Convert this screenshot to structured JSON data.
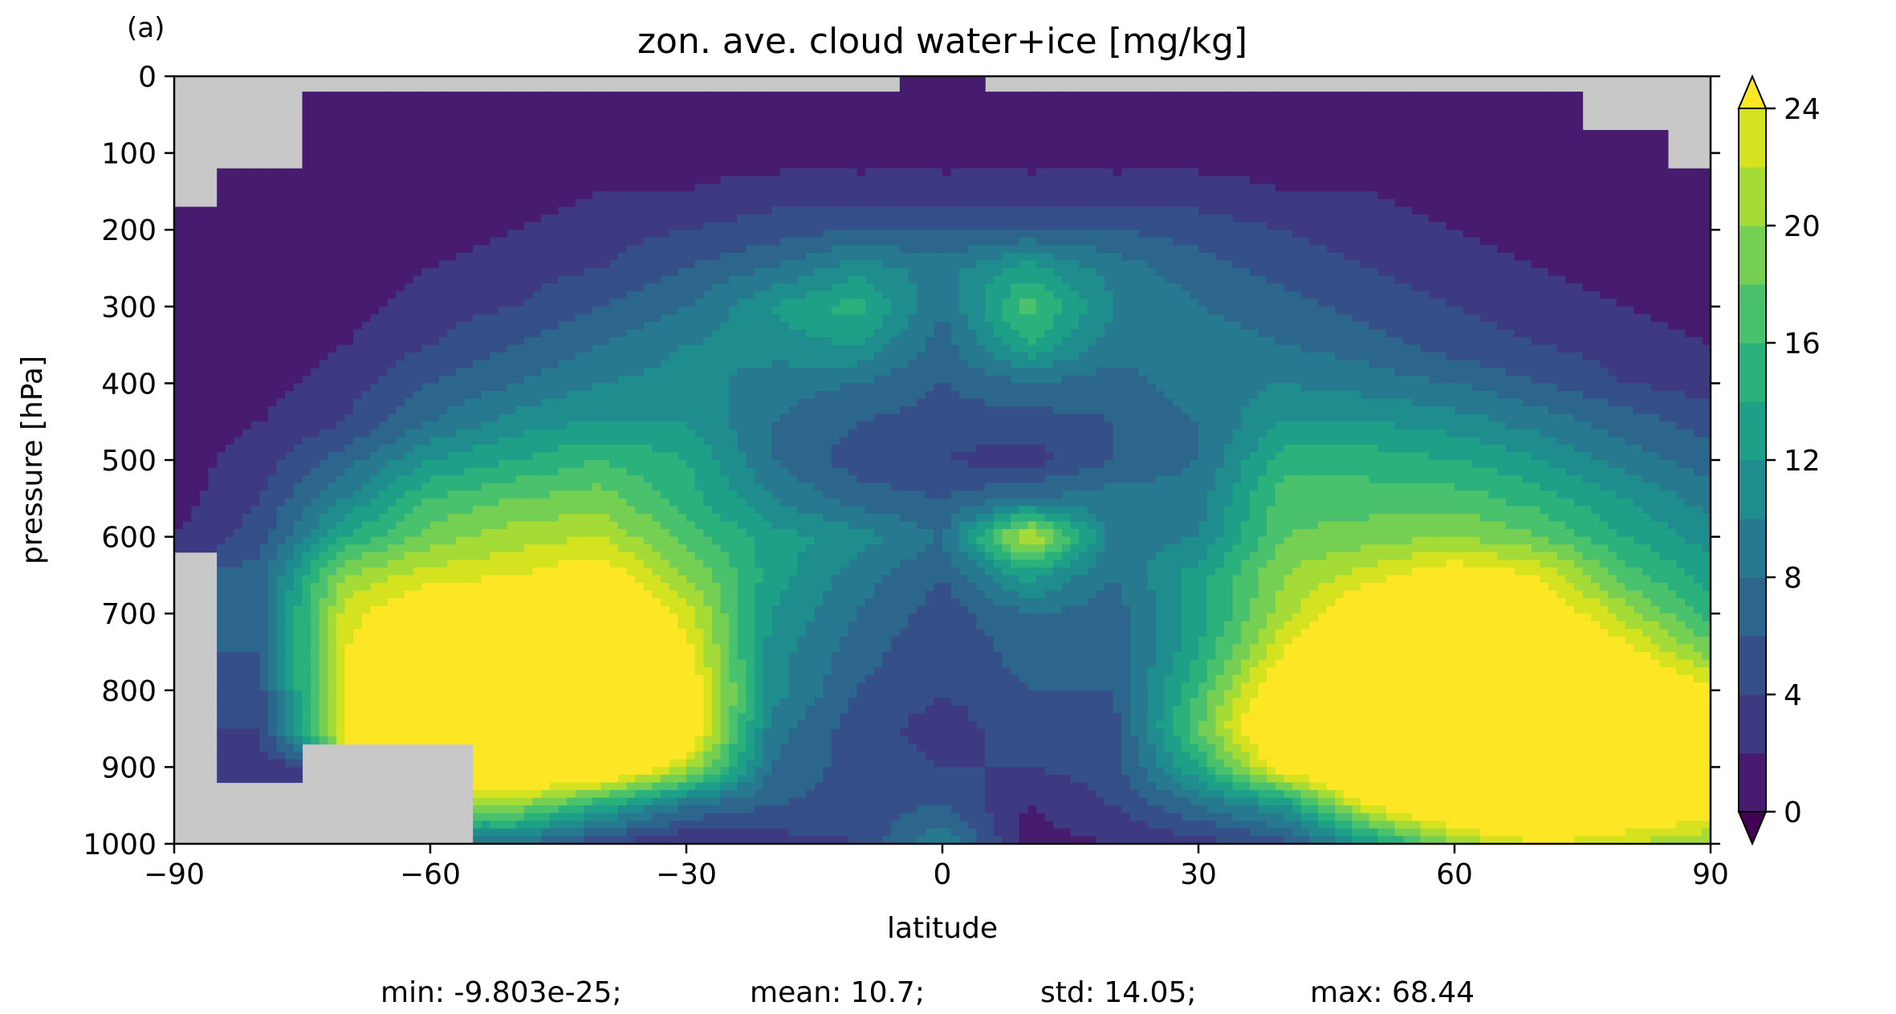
{
  "panel_label": "(a)",
  "chart_data": {
    "type": "contourf",
    "title": "zon. ave. cloud water+ice [mg/kg]",
    "xlabel": "latitude",
    "ylabel": "pressure [hPa]",
    "xlim": [
      -90,
      90
    ],
    "ylim": [
      1000,
      0
    ],
    "x_ticks": [
      -90,
      -60,
      -30,
      0,
      30,
      60,
      90
    ],
    "x_tick_labels": [
      "−90",
      "−60",
      "−30",
      "0",
      "30",
      "60",
      "90"
    ],
    "y_ticks": [
      0,
      100,
      200,
      300,
      400,
      500,
      600,
      700,
      800,
      900,
      1000
    ],
    "y_tick_labels": [
      "0",
      "100",
      "200",
      "300",
      "400",
      "500",
      "600",
      "700",
      "800",
      "900",
      "1000"
    ],
    "colorbar": {
      "levels": [
        0,
        2,
        4,
        6,
        8,
        10,
        12,
        14,
        16,
        18,
        20,
        22,
        24
      ],
      "tick_values": [
        0,
        4,
        8,
        12,
        16,
        20,
        24
      ],
      "tick_labels": [
        "0",
        "4",
        "8",
        "12",
        "16",
        "20",
        "24"
      ],
      "extend": "both",
      "colors": [
        "#440154",
        "#471c6e",
        "#3e3a82",
        "#355089",
        "#2c668d",
        "#26798e",
        "#1f8c8d",
        "#1d9f88",
        "#2bb17b",
        "#4ac16c",
        "#75cf53",
        "#a5db36",
        "#d5e21f",
        "#fde725"
      ],
      "mask_color": "#c8c8c8"
    },
    "field": {
      "latitudes": [
        -90,
        -80,
        -70,
        -60,
        -50,
        -40,
        -30,
        -20,
        -10,
        0,
        10,
        20,
        30,
        40,
        50,
        60,
        70,
        80,
        90
      ],
      "pressures": [
        0,
        50,
        100,
        150,
        200,
        250,
        300,
        350,
        400,
        450,
        500,
        550,
        600,
        650,
        700,
        750,
        800,
        850,
        900,
        950,
        1000
      ],
      "values": [
        [
          null,
          null,
          null,
          null,
          null,
          null,
          null,
          null,
          null,
          0,
          null,
          null,
          null,
          null,
          null,
          null,
          null,
          null,
          null
        ],
        [
          null,
          null,
          1,
          1,
          1,
          1,
          1,
          1,
          1,
          1,
          1,
          1,
          1,
          1,
          1,
          1,
          1,
          null,
          null
        ],
        [
          null,
          null,
          1,
          1,
          1,
          1,
          1,
          1,
          1,
          1,
          1,
          1,
          1,
          1,
          1,
          1,
          1,
          1,
          null
        ],
        [
          null,
          1,
          1,
          1,
          1,
          2,
          2,
          3,
          3,
          3,
          3,
          3,
          3,
          2,
          2,
          1,
          1,
          1,
          1
        ],
        [
          1,
          1,
          1,
          1,
          2,
          3,
          4,
          5,
          6,
          6,
          6,
          6,
          5,
          4,
          3,
          2,
          1,
          1,
          1
        ],
        [
          1,
          1,
          1,
          2,
          3,
          4,
          6,
          8,
          11,
          9,
          13,
          9,
          7,
          5,
          4,
          3,
          2,
          1,
          1
        ],
        [
          1,
          1,
          1,
          3,
          4,
          6,
          8,
          12,
          15,
          8,
          17,
          10,
          8,
          7,
          5,
          4,
          3,
          2,
          1
        ],
        [
          1,
          1,
          2,
          4,
          6,
          8,
          10,
          11,
          12,
          7,
          14,
          9,
          9,
          8,
          7,
          5,
          4,
          3,
          2
        ],
        [
          1,
          1,
          3,
          6,
          8,
          10,
          11,
          9,
          8,
          6,
          8,
          7,
          9,
          10,
          9,
          8,
          6,
          4,
          3
        ],
        [
          1,
          2,
          4,
          8,
          11,
          12,
          12,
          8,
          6,
          5,
          5,
          6,
          8,
          12,
          12,
          11,
          9,
          7,
          5
        ],
        [
          1,
          3,
          7,
          12,
          14,
          16,
          14,
          8,
          5,
          4,
          3,
          6,
          8,
          15,
          15,
          14,
          12,
          9,
          7
        ],
        [
          1,
          4,
          10,
          16,
          18,
          19,
          15,
          10,
          7,
          6,
          8,
          9,
          9,
          17,
          17,
          17,
          15,
          12,
          9
        ],
        [
          2,
          5,
          14,
          19,
          21,
          22,
          17,
          13,
          11,
          8,
          23,
          9,
          10,
          18,
          19,
          20,
          18,
          14,
          11
        ],
        [
          null,
          7,
          20,
          23,
          24,
          26,
          20,
          13,
          9,
          6,
          13,
          8,
          13,
          20,
          23,
          26,
          24,
          17,
          13
        ],
        [
          null,
          7,
          23,
          27,
          28,
          29,
          23,
          12,
          8,
          5,
          8,
          7,
          13,
          21,
          28,
          30,
          27,
          21,
          15
        ],
        [
          null,
          6,
          24,
          30,
          32,
          31,
          25,
          11,
          7,
          4,
          7,
          6,
          14,
          24,
          31,
          33,
          30,
          25,
          19
        ],
        [
          null,
          5,
          25,
          33,
          35,
          33,
          27,
          11,
          6,
          4,
          6,
          6,
          16,
          28,
          34,
          36,
          34,
          30,
          25
        ],
        [
          null,
          4,
          24,
          32,
          34,
          33,
          28,
          9,
          5,
          3,
          5,
          5,
          18,
          30,
          36,
          38,
          36,
          33,
          29
        ],
        [
          null,
          3,
          null,
          null,
          31,
          30,
          22,
          8,
          5,
          4,
          4,
          5,
          14,
          26,
          33,
          36,
          35,
          32,
          28
        ],
        [
          null,
          null,
          null,
          null,
          20,
          14,
          8,
          6,
          5,
          6,
          2,
          4,
          8,
          12,
          24,
          30,
          31,
          29,
          26
        ],
        [
          null,
          null,
          null,
          null,
          8,
          4,
          2,
          3,
          4,
          10,
          1,
          2,
          3,
          5,
          12,
          20,
          24,
          22,
          20
        ]
      ]
    },
    "mask_boundary_note": "gray region = surface below orography / no data",
    "stats": {
      "min": "-9.803e-25",
      "mean": "10.7",
      "std": "14.05",
      "max": "68.44"
    }
  },
  "stats_line": {
    "min": "min: -9.803e-25;",
    "mean": "mean: 10.7;",
    "std": "std: 14.05;",
    "max": "max: 68.44"
  }
}
